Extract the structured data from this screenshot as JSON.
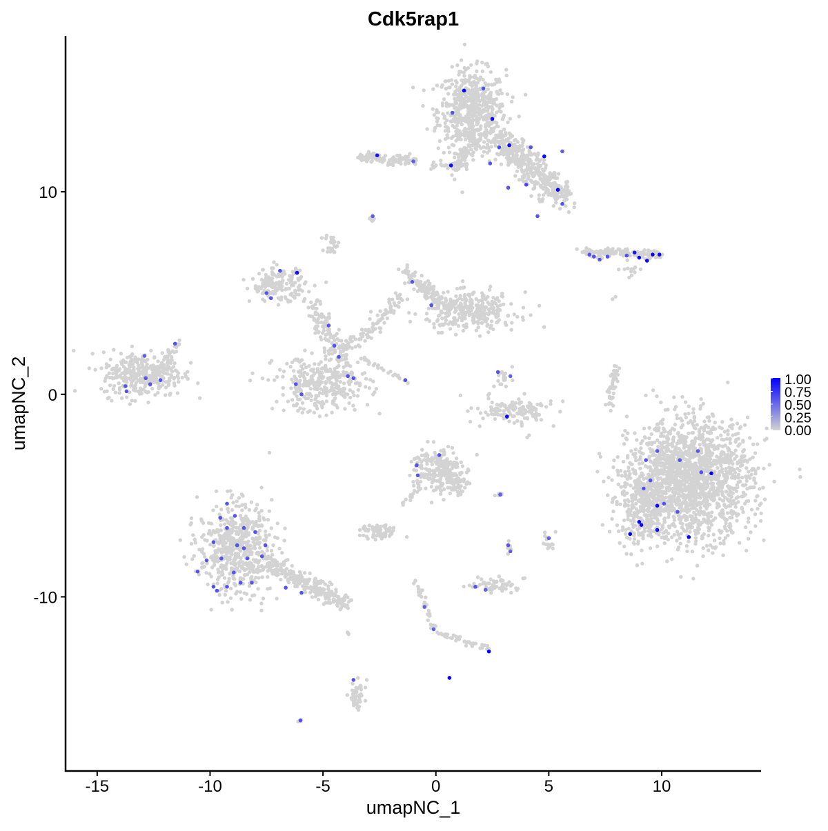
{
  "chart_data": {
    "type": "scatter",
    "title": "Cdk5rap1",
    "xlabel": "umapNC_1",
    "ylabel": "umapNC_2",
    "xlim": [
      -16.4,
      14.4
    ],
    "ylim": [
      -18.6,
      17.7
    ],
    "xticks": [
      "-15",
      "-10",
      "-5",
      "0",
      "5",
      "10"
    ],
    "xtick_values": [
      -15,
      -10,
      -5,
      0,
      5,
      10
    ],
    "yticks": [
      "-10",
      "0",
      "10"
    ],
    "ytick_values": [
      -10,
      0,
      10
    ],
    "grid": false,
    "color_scale": {
      "low": "#d3d3d3",
      "high": "#0000ff",
      "min": 0,
      "max": 1
    },
    "legend": {
      "position": "right",
      "labels": [
        "1.00",
        "0.75",
        "0.50",
        "0.25",
        "0.00"
      ]
    },
    "background_clusters": [
      {
        "cx": 1.6,
        "cy": 14.0,
        "sx": 0.75,
        "sy": 1.0,
        "n": 600
      },
      {
        "from": [
          2.6,
          12.8
        ],
        "to": [
          5.6,
          9.8
        ],
        "spread": 0.55,
        "n": 420
      },
      {
        "from": [
          1.8,
          12.8
        ],
        "to": [
          0.9,
          11.2
        ],
        "spread": 0.3,
        "n": 80
      },
      {
        "from": [
          -0.2,
          11.3
        ],
        "to": [
          1.3,
          11.3
        ],
        "spread": 0.15,
        "n": 30
      },
      {
        "from": [
          -3.4,
          11.7
        ],
        "to": [
          -0.9,
          11.5
        ],
        "spread": 0.2,
        "n": 110
      },
      {
        "cx": -2.8,
        "cy": 8.7,
        "sx": 0.1,
        "sy": 0.1,
        "n": 10
      },
      {
        "cx": -4.6,
        "cy": 7.4,
        "sx": 0.15,
        "sy": 0.25,
        "n": 25
      },
      {
        "from": [
          6.5,
          7.0
        ],
        "to": [
          10.0,
          6.9
        ],
        "spread": 0.18,
        "n": 140
      },
      {
        "cx": 8.7,
        "cy": 6.2,
        "sx": 0.25,
        "sy": 0.2,
        "n": 12
      },
      {
        "cx": -13.0,
        "cy": 1.0,
        "sx": 0.9,
        "sy": 0.55,
        "n": 330
      },
      {
        "from": [
          -12.0,
          1.4
        ],
        "to": [
          -11.4,
          2.6
        ],
        "spread": 0.2,
        "n": 30
      },
      {
        "cx": -7.0,
        "cy": 5.4,
        "sx": 0.6,
        "sy": 0.4,
        "n": 160
      },
      {
        "cx": -5.0,
        "cy": 0.5,
        "sx": 1.05,
        "sy": 0.7,
        "n": 320
      },
      {
        "from": [
          -5.6,
          4.5
        ],
        "to": [
          -4.0,
          1.5
        ],
        "spread": 0.35,
        "n": 120
      },
      {
        "from": [
          -4.2,
          2.0
        ],
        "to": [
          -1.4,
          4.8
        ],
        "spread": 0.3,
        "n": 110
      },
      {
        "cx": 1.6,
        "cy": 4.1,
        "sx": 1.0,
        "sy": 0.45,
        "n": 320
      },
      {
        "from": [
          -1.4,
          6.0
        ],
        "to": [
          0.5,
          4.3
        ],
        "spread": 0.3,
        "n": 110
      },
      {
        "from": [
          -3.3,
          1.8
        ],
        "to": [
          -1.4,
          0.7
        ],
        "spread": 0.08,
        "n": 25
      },
      {
        "cx": 3.4,
        "cy": -0.8,
        "sx": 0.85,
        "sy": 0.3,
        "n": 130
      },
      {
        "cx": 3.0,
        "cy": 0.8,
        "sx": 0.2,
        "sy": 0.25,
        "n": 20
      },
      {
        "from": [
          8.0,
          1.3
        ],
        "to": [
          7.6,
          -0.8
        ],
        "spread": 0.13,
        "n": 45
      },
      {
        "cx": 11.3,
        "cy": -4.2,
        "sx": 1.35,
        "sy": 1.45,
        "n": 1700
      },
      {
        "cx": 9.1,
        "cy": -5.5,
        "sx": 0.55,
        "sy": 1.0,
        "n": 260
      },
      {
        "cx": 0.0,
        "cy": -3.7,
        "sx": 0.55,
        "sy": 0.6,
        "n": 200
      },
      {
        "from": [
          0.5,
          -3.6
        ],
        "to": [
          1.2,
          -4.9
        ],
        "spread": 0.25,
        "n": 60
      },
      {
        "cx": -8.9,
        "cy": -7.6,
        "sx": 0.8,
        "sy": 1.1,
        "n": 560
      },
      {
        "from": [
          -8.0,
          -8.0
        ],
        "to": [
          -3.9,
          -10.4
        ],
        "spread": 0.35,
        "n": 260
      },
      {
        "cx": -2.5,
        "cy": -6.8,
        "sx": 0.4,
        "sy": 0.18,
        "n": 70
      },
      {
        "from": [
          -1.5,
          -5.5
        ],
        "to": [
          -0.7,
          -4.6
        ],
        "spread": 0.1,
        "n": 15
      },
      {
        "cx": 2.6,
        "cy": -9.4,
        "sx": 0.55,
        "sy": 0.2,
        "n": 60
      },
      {
        "from": [
          -0.9,
          -9.2
        ],
        "to": [
          -0.1,
          -11.6
        ],
        "spread": 0.1,
        "n": 30
      },
      {
        "from": [
          0.1,
          -11.8
        ],
        "to": [
          2.4,
          -12.6
        ],
        "spread": 0.12,
        "n": 40
      },
      {
        "cx": -3.5,
        "cy": -14.8,
        "sx": 0.2,
        "sy": 0.4,
        "n": 45
      },
      {
        "cx": 2.8,
        "cy": -4.95,
        "sx": 0.1,
        "sy": 0.06,
        "n": 8
      },
      {
        "cx": 5.0,
        "cy": -7.3,
        "sx": 0.12,
        "sy": 0.25,
        "n": 15
      },
      {
        "cx": 3.3,
        "cy": -7.6,
        "sx": 0.08,
        "sy": 0.2,
        "n": 8
      },
      {
        "cx": -6.0,
        "cy": -16.1,
        "sx": 0.05,
        "sy": 0.05,
        "n": 3
      },
      {
        "cx": 4.1,
        "cy": -2.1,
        "sx": 0.05,
        "sy": 0.05,
        "n": 2
      },
      {
        "cx": 7.9,
        "cy": 4.8,
        "sx": 0.05,
        "sy": 0.05,
        "n": 2
      },
      {
        "cx": -4.0,
        "cy": -11.8,
        "sx": 0.15,
        "sy": 0.05,
        "n": 3
      }
    ],
    "expressing_cells": [
      {
        "x": 1.25,
        "y": 15.0,
        "v": 1.0
      },
      {
        "x": 2.5,
        "y": 13.6,
        "v": 0.95
      },
      {
        "x": 3.25,
        "y": 12.3,
        "v": 0.95
      },
      {
        "x": 4.8,
        "y": 11.75,
        "v": 0.95
      },
      {
        "x": 5.4,
        "y": 10.1,
        "v": 1.0
      },
      {
        "x": 0.67,
        "y": 11.3,
        "v": 0.95
      },
      {
        "x": -2.6,
        "y": 11.8,
        "v": 0.9
      },
      {
        "x": -6.15,
        "y": 6.0,
        "v": 0.95
      },
      {
        "x": 8.8,
        "y": 7.0,
        "v": 0.9
      },
      {
        "x": 9.0,
        "y": 6.75,
        "v": 0.95
      },
      {
        "x": 9.35,
        "y": 6.6,
        "v": 0.95
      },
      {
        "x": 9.6,
        "y": 6.9,
        "v": 1.0
      },
      {
        "x": 9.9,
        "y": 6.9,
        "v": 0.95
      },
      {
        "x": 3.15,
        "y": -1.1,
        "v": 0.95
      },
      {
        "x": 12.2,
        "y": -3.9,
        "v": 1.0
      },
      {
        "x": 9.8,
        "y": -5.5,
        "v": 0.95
      },
      {
        "x": 9.0,
        "y": -6.3,
        "v": 1.0
      },
      {
        "x": 9.1,
        "y": -6.45,
        "v": 0.95
      },
      {
        "x": 8.6,
        "y": -6.9,
        "v": 1.0
      },
      {
        "x": 9.8,
        "y": -6.7,
        "v": 0.95
      },
      {
        "x": 11.2,
        "y": -7.05,
        "v": 1.0
      },
      {
        "x": 2.35,
        "y": -12.7,
        "v": 1.0
      },
      {
        "x": 0.6,
        "y": -14.0,
        "v": 1.0
      },
      {
        "x": 2.1,
        "y": 15.1,
        "v": 0.6
      },
      {
        "x": 0.73,
        "y": 13.9,
        "v": 0.6
      },
      {
        "x": 2.8,
        "y": 12.2,
        "v": 0.65
      },
      {
        "x": 2.4,
        "y": 11.4,
        "v": 0.6
      },
      {
        "x": 4.2,
        "y": 12.2,
        "v": 0.6
      },
      {
        "x": 5.6,
        "y": 12.0,
        "v": 0.55
      },
      {
        "x": 3.2,
        "y": 10.2,
        "v": 0.6
      },
      {
        "x": 4.0,
        "y": 10.35,
        "v": 0.65
      },
      {
        "x": 4.5,
        "y": 8.8,
        "v": 0.6
      },
      {
        "x": 5.6,
        "y": 9.4,
        "v": 0.6
      },
      {
        "x": -1.0,
        "y": 11.5,
        "v": 0.55
      },
      {
        "x": -2.8,
        "y": 8.8,
        "v": 0.55
      },
      {
        "x": 6.8,
        "y": 6.9,
        "v": 0.6
      },
      {
        "x": 7.0,
        "y": 6.8,
        "v": 0.6
      },
      {
        "x": 7.25,
        "y": 6.65,
        "v": 0.6
      },
      {
        "x": 7.6,
        "y": 6.8,
        "v": 0.6
      },
      {
        "x": 8.45,
        "y": 6.85,
        "v": 0.6
      },
      {
        "x": -11.55,
        "y": 2.5,
        "v": 0.6
      },
      {
        "x": -12.9,
        "y": 1.9,
        "v": 0.55
      },
      {
        "x": -13.75,
        "y": 0.4,
        "v": 0.6
      },
      {
        "x": -13.7,
        "y": 0.15,
        "v": 0.6
      },
      {
        "x": -12.65,
        "y": 0.5,
        "v": 0.6
      },
      {
        "x": -12.2,
        "y": 0.7,
        "v": 0.6
      },
      {
        "x": -12.85,
        "y": 0.8,
        "v": 0.6
      },
      {
        "x": -6.9,
        "y": 6.1,
        "v": 0.6
      },
      {
        "x": -7.5,
        "y": 5.0,
        "v": 0.6
      },
      {
        "x": -7.3,
        "y": 4.75,
        "v": 0.6
      },
      {
        "x": -1.05,
        "y": 5.55,
        "v": 0.6
      },
      {
        "x": -0.2,
        "y": 4.4,
        "v": 0.6
      },
      {
        "x": -4.75,
        "y": 3.4,
        "v": 0.6
      },
      {
        "x": -4.5,
        "y": 2.4,
        "v": 0.6
      },
      {
        "x": -4.3,
        "y": 1.85,
        "v": 0.6
      },
      {
        "x": -3.9,
        "y": 0.9,
        "v": 0.6
      },
      {
        "x": -3.65,
        "y": 0.8,
        "v": 0.6
      },
      {
        "x": -6.2,
        "y": 0.5,
        "v": 0.6
      },
      {
        "x": -5.95,
        "y": 0.0,
        "v": 0.6
      },
      {
        "x": -1.35,
        "y": 0.7,
        "v": 0.6
      },
      {
        "x": 2.75,
        "y": 1.1,
        "v": 0.6
      },
      {
        "x": 3.3,
        "y": 0.9,
        "v": 0.55
      },
      {
        "x": -0.85,
        "y": -3.5,
        "v": 0.6
      },
      {
        "x": -0.8,
        "y": -4.0,
        "v": 0.6
      },
      {
        "x": 0.15,
        "y": -3.0,
        "v": 0.6
      },
      {
        "x": 9.3,
        "y": -3.25,
        "v": 0.6
      },
      {
        "x": 9.8,
        "y": -2.8,
        "v": 0.6
      },
      {
        "x": 10.8,
        "y": -3.25,
        "v": 0.6
      },
      {
        "x": 11.6,
        "y": -2.8,
        "v": 0.6
      },
      {
        "x": 11.75,
        "y": -3.85,
        "v": 0.6
      },
      {
        "x": 9.5,
        "y": -4.25,
        "v": 0.6
      },
      {
        "x": 9.2,
        "y": -4.65,
        "v": 0.6
      },
      {
        "x": 10.1,
        "y": -5.4,
        "v": 0.6
      },
      {
        "x": 10.7,
        "y": -5.8,
        "v": 0.6
      },
      {
        "x": -9.55,
        "y": -6.1,
        "v": 0.6
      },
      {
        "x": -8.9,
        "y": -6.0,
        "v": 0.6
      },
      {
        "x": -9.25,
        "y": -6.6,
        "v": 0.6
      },
      {
        "x": -9.85,
        "y": -7.3,
        "v": 0.6
      },
      {
        "x": -8.5,
        "y": -6.6,
        "v": 0.6
      },
      {
        "x": -8.0,
        "y": -6.8,
        "v": 0.6
      },
      {
        "x": -7.55,
        "y": -7.45,
        "v": 0.6
      },
      {
        "x": -8.8,
        "y": -7.45,
        "v": 0.6
      },
      {
        "x": -9.5,
        "y": -8.1,
        "v": 0.6
      },
      {
        "x": -8.35,
        "y": -8.1,
        "v": 0.6
      },
      {
        "x": -7.7,
        "y": -8.0,
        "v": 0.6
      },
      {
        "x": -10.15,
        "y": -8.2,
        "v": 0.6
      },
      {
        "x": -10.55,
        "y": -8.75,
        "v": 0.6
      },
      {
        "x": -8.95,
        "y": -8.8,
        "v": 0.6
      },
      {
        "x": -8.65,
        "y": -9.3,
        "v": 0.6
      },
      {
        "x": -9.25,
        "y": -9.5,
        "v": 0.6
      },
      {
        "x": -9.85,
        "y": -9.5,
        "v": 0.6
      },
      {
        "x": -9.7,
        "y": -9.7,
        "v": 0.6
      },
      {
        "x": -9.25,
        "y": -5.4,
        "v": 0.6
      },
      {
        "x": -6.65,
        "y": -9.55,
        "v": 0.6
      },
      {
        "x": -5.95,
        "y": -9.8,
        "v": 0.6
      },
      {
        "x": -8.15,
        "y": -9.3,
        "v": 0.6
      },
      {
        "x": -8.5,
        "y": -7.6,
        "v": 0.6
      },
      {
        "x": 3.2,
        "y": -7.45,
        "v": 0.6
      },
      {
        "x": 3.3,
        "y": -7.75,
        "v": 0.55
      },
      {
        "x": 2.85,
        "y": -4.95,
        "v": 0.55
      },
      {
        "x": 5.0,
        "y": -7.1,
        "v": 0.55
      },
      {
        "x": 1.75,
        "y": -9.5,
        "v": 0.6
      },
      {
        "x": 2.2,
        "y": -9.65,
        "v": 0.55
      },
      {
        "x": -0.5,
        "y": -10.5,
        "v": 0.55
      },
      {
        "x": -0.1,
        "y": -11.6,
        "v": 0.55
      },
      {
        "x": -3.65,
        "y": -14.1,
        "v": 0.6
      },
      {
        "x": -6.0,
        "y": -16.1,
        "v": 0.6
      }
    ]
  }
}
